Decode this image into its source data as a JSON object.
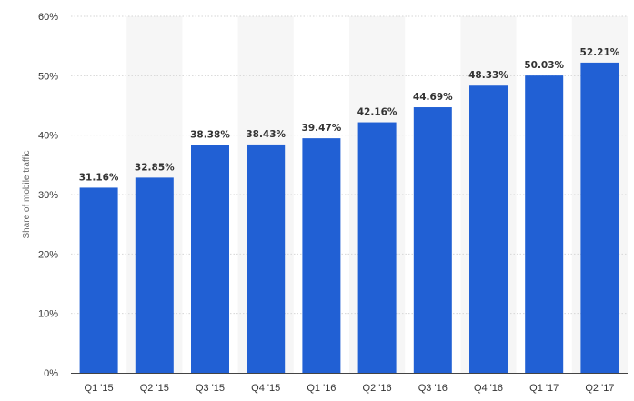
{
  "chart_data": {
    "type": "bar",
    "title": "",
    "xlabel": "",
    "ylabel": "Share of mobile traffic",
    "categories": [
      "Q1 '15",
      "Q2 '15",
      "Q3 '15",
      "Q4 '15",
      "Q1 '16",
      "Q2 '16",
      "Q3 '16",
      "Q4 '16",
      "Q1 '17",
      "Q2 '17"
    ],
    "values": [
      31.16,
      32.85,
      38.38,
      38.43,
      39.47,
      42.16,
      44.69,
      48.33,
      50.03,
      52.21
    ],
    "value_labels": [
      "31.16%",
      "32.85%",
      "38.38%",
      "38.43%",
      "39.47%",
      "42.16%",
      "44.69%",
      "48.33%",
      "50.03%",
      "52.21%"
    ],
    "ylim": [
      0,
      60
    ],
    "y_ticks": [
      "0%",
      "10%",
      "20%",
      "30%",
      "40%",
      "50%",
      "60%"
    ],
    "grid": true,
    "alternate_column_shading": true,
    "legend": "none",
    "colors": {
      "bar": "#2160d4",
      "grid": "#d6d6d6",
      "column_shade": "#f6f6f6",
      "axis_line": "#444444"
    }
  }
}
